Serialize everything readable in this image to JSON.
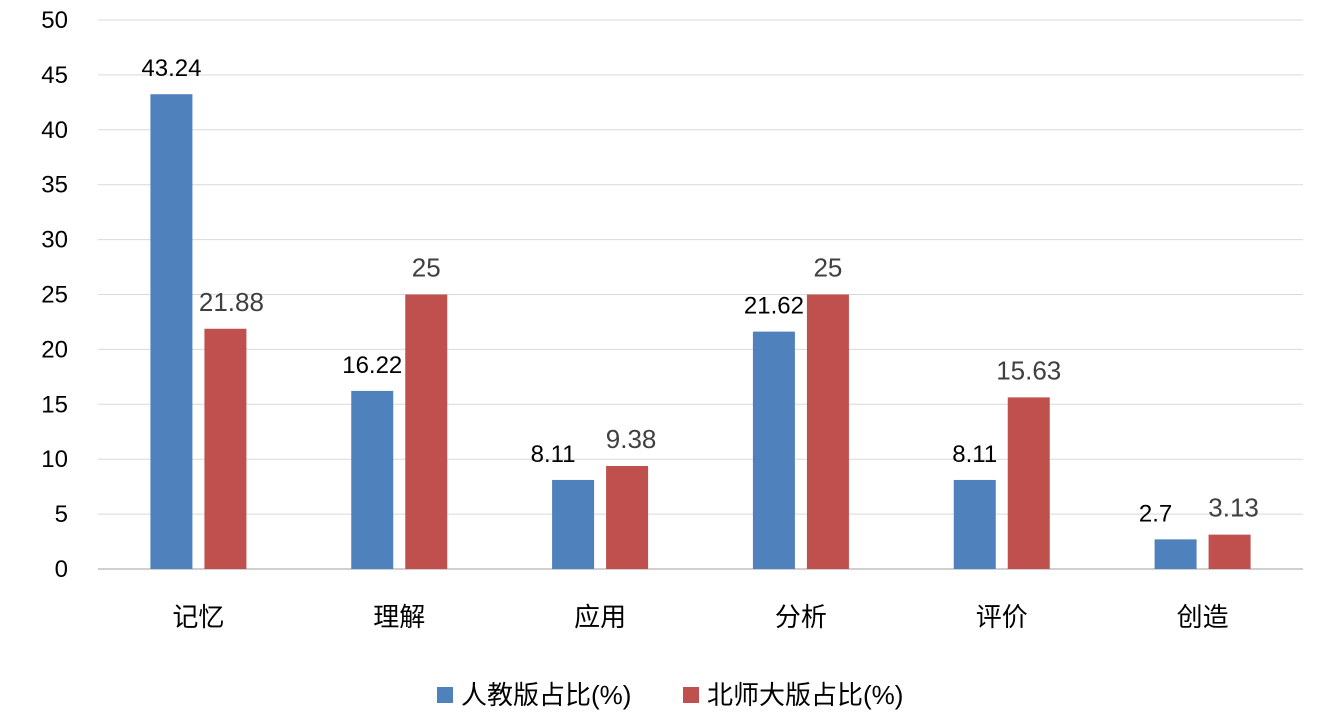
{
  "chart_data": {
    "type": "bar",
    "categories": [
      "记忆",
      "理解",
      "应用",
      "分析",
      "评价",
      "创造"
    ],
    "series": [
      {
        "name": "人教版占比(%)",
        "values": [
          43.24,
          16.22,
          8.11,
          21.62,
          8.11,
          2.7
        ],
        "labels": [
          "43.24",
          "16.22",
          "8.11",
          "21.62",
          "8.11",
          "2.7"
        ],
        "color": "#4F81BD"
      },
      {
        "name": "北师大版占比(%)",
        "values": [
          21.88,
          25,
          9.38,
          25,
          15.63,
          3.13
        ],
        "labels": [
          "21.88",
          "25",
          "9.38",
          "25",
          "15.63",
          "3.13"
        ],
        "color": "#C0504D"
      }
    ],
    "ylim": [
      0,
      50
    ],
    "yticks": [
      0,
      5,
      10,
      15,
      20,
      25,
      30,
      35,
      40,
      45,
      50
    ],
    "grid": true,
    "legend": "bottom"
  }
}
